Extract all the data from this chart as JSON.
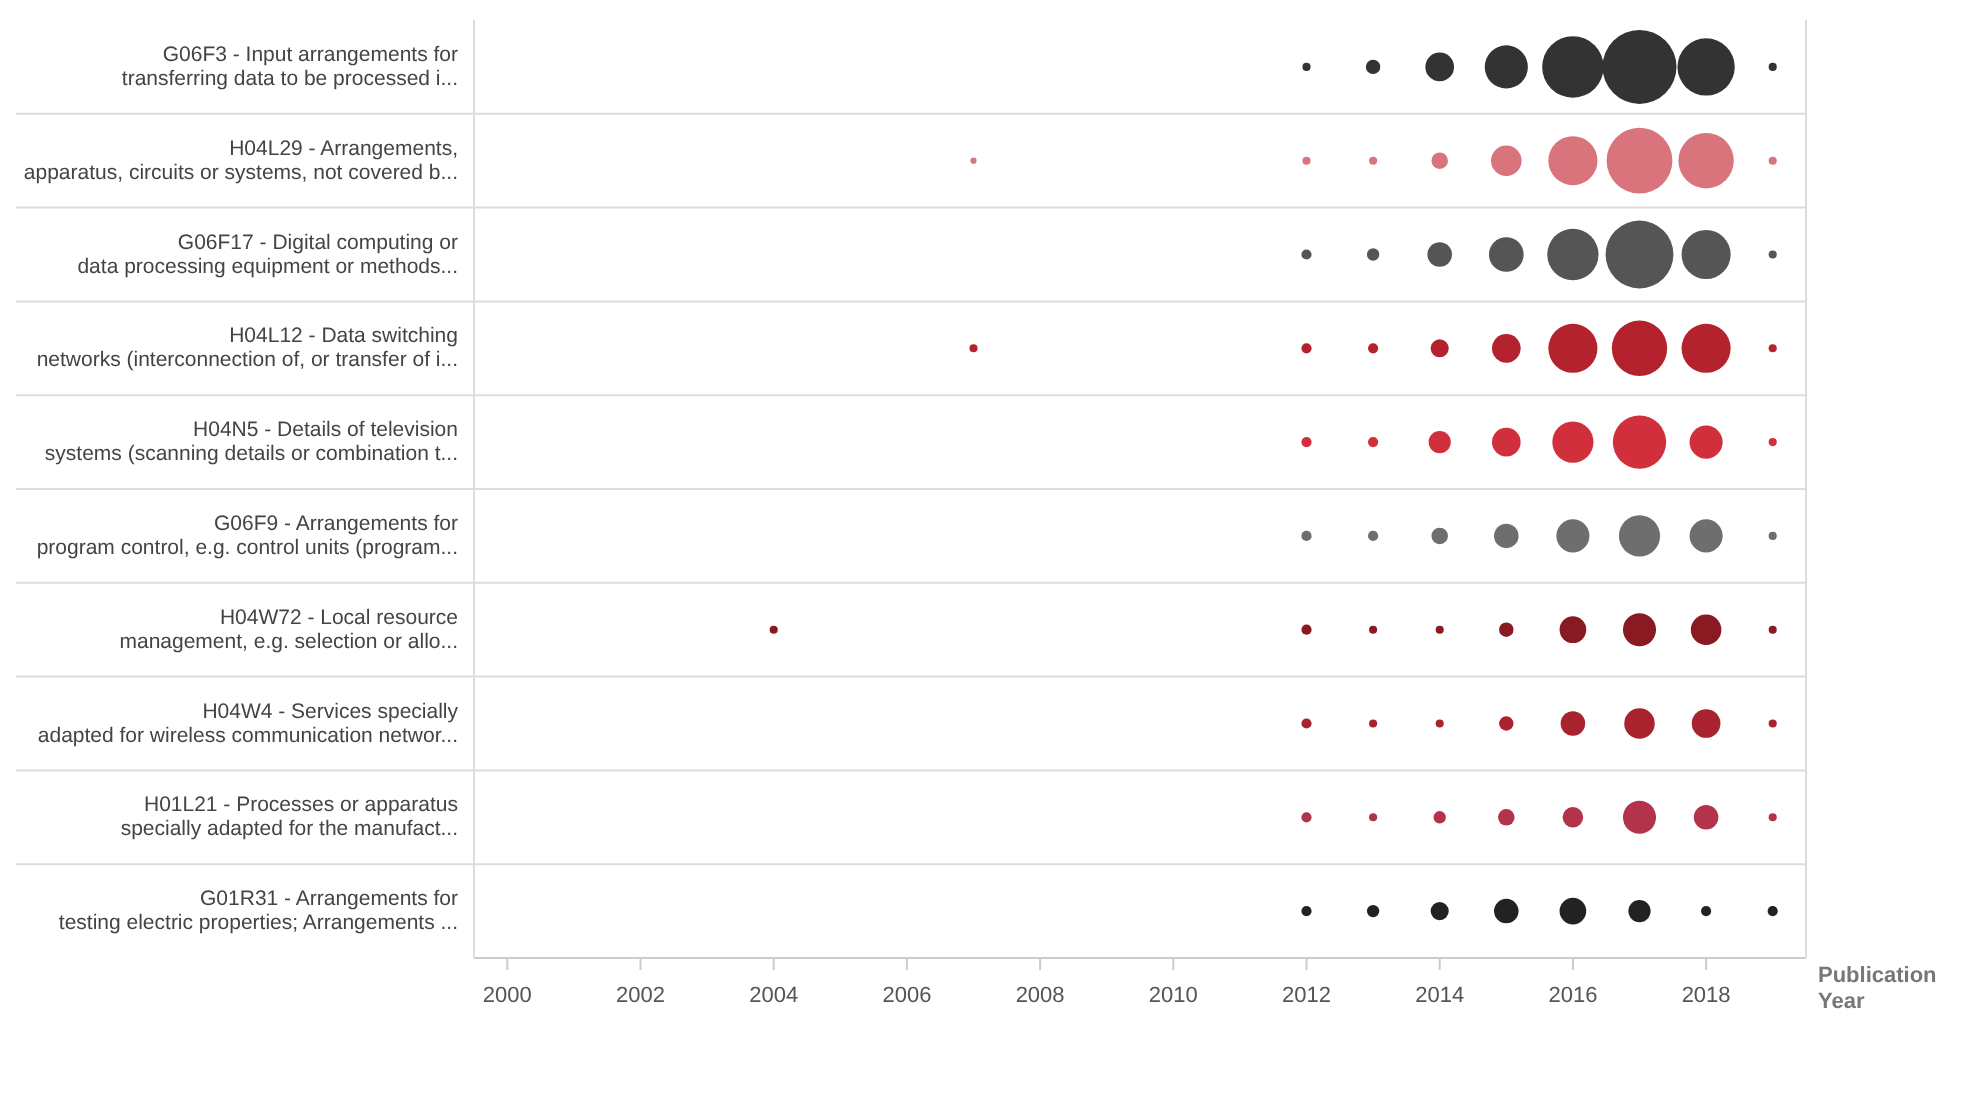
{
  "chart_data": {
    "type": "bubble",
    "orientation": "horizontal",
    "xlabel": "Publication Year",
    "xlim": [
      1999.5,
      2019.5
    ],
    "xticks": [
      2000,
      2002,
      2004,
      2006,
      2008,
      2010,
      2012,
      2014,
      2016,
      2018
    ],
    "categories": [
      "G06F3 - Input arrangements for transferring data to be processed i...",
      "H04L29 - Arrangements, apparatus, circuits or systems, not covered b...",
      "G06F17 - Digital computing or data processing equipment or methods...",
      "H04L12 - Data switching networks (interconnection of, or transfer of i...",
      "H04N5 - Details of television systems (scanning details or combination t...",
      "G06F9 - Arrangements for program control, e.g. control units (program...",
      "H04W72 - Local resource management, e.g. selection or allo...",
      "H04W4 - Services specially adapted for wireless communication networ...",
      "H01L21 - Processes or apparatus specially adapted for the manufact...",
      "G01R31 - Arrangements for testing electric properties; Arrangements ..."
    ],
    "series": [
      {
        "values": [
          null,
          null,
          null,
          null,
          null,
          null,
          2004,
          null,
          null,
          null
        ],
        "sizes": [
          null,
          null,
          null,
          null,
          null,
          null,
          0.012,
          null,
          null,
          null
        ],
        "colors": [
          null,
          null,
          null,
          null,
          null,
          null,
          "#8a1a22",
          null,
          null,
          null
        ]
      },
      {
        "values": [
          null,
          2007,
          null,
          2007,
          null,
          null,
          null,
          null,
          null,
          null
        ],
        "sizes": [
          null,
          0.007,
          null,
          0.012,
          null,
          null,
          null,
          null,
          null,
          null
        ],
        "colors": [
          null,
          "#d9737c",
          null,
          "#b3222d",
          null,
          null,
          null,
          null,
          null,
          null
        ]
      },
      {
        "values": [
          2012,
          2012,
          2012,
          2012,
          2012,
          2012,
          2012,
          2012,
          2012,
          2012
        ],
        "sizes": [
          0.012,
          0.012,
          0.019,
          0.019,
          0.019,
          0.019,
          0.019,
          0.019,
          0.019,
          0.019
        ],
        "colors": [
          "#333333",
          "#d9737c",
          "#555555",
          "#b3222d",
          "#d22f3d",
          "#6e6e6e",
          "#8a1a22",
          "#a8232e",
          "#b3344a",
          "#222222"
        ]
      },
      {
        "values": [
          2013,
          2013,
          2013,
          2013,
          2013,
          2013,
          2013,
          2013,
          2013,
          2013
        ],
        "sizes": [
          0.038,
          0.012,
          0.028,
          0.019,
          0.019,
          0.019,
          0.012,
          0.012,
          0.012,
          0.028
        ],
        "colors": [
          "#333333",
          "#d9737c",
          "#555555",
          "#b3222d",
          "#d22f3d",
          "#6e6e6e",
          "#8a1a22",
          "#a8232e",
          "#b3344a",
          "#222222"
        ]
      },
      {
        "values": [
          2014,
          2014,
          2014,
          2014,
          2014,
          2014,
          2014,
          2014,
          2014,
          2014
        ],
        "sizes": [
          0.15,
          0.05,
          0.11,
          0.06,
          0.09,
          0.05,
          0.012,
          0.012,
          0.028,
          0.06
        ],
        "colors": [
          "#333333",
          "#d9737c",
          "#555555",
          "#b3222d",
          "#d22f3d",
          "#6e6e6e",
          "#8a1a22",
          "#a8232e",
          "#b3344a",
          "#222222"
        ]
      },
      {
        "values": [
          2015,
          2015,
          2015,
          2015,
          2015,
          2015,
          2015,
          2015,
          2015,
          2015
        ],
        "sizes": [
          0.34,
          0.17,
          0.22,
          0.15,
          0.15,
          0.11,
          0.038,
          0.038,
          0.05,
          0.11
        ],
        "colors": [
          "#333333",
          "#d9737c",
          "#555555",
          "#b3222d",
          "#d22f3d",
          "#6e6e6e",
          "#8a1a22",
          "#a8232e",
          "#b3344a",
          "#222222"
        ]
      },
      {
        "values": [
          2016,
          2016,
          2016,
          2016,
          2016,
          2016,
          2016,
          2016,
          2016,
          2016
        ],
        "sizes": [
          0.69,
          0.44,
          0.48,
          0.44,
          0.31,
          0.2,
          0.13,
          0.11,
          0.077,
          0.13
        ],
        "colors": [
          "#333333",
          "#d9737c",
          "#555555",
          "#b3222d",
          "#d22f3d",
          "#6e6e6e",
          "#8a1a22",
          "#a8232e",
          "#b3344a",
          "#222222"
        ]
      },
      {
        "values": [
          2017,
          2017,
          2017,
          2017,
          2017,
          2017,
          2017,
          2017,
          2017,
          2017
        ],
        "sizes": [
          1,
          0.79,
          0.84,
          0.56,
          0.52,
          0.31,
          0.2,
          0.17,
          0.2,
          0.09
        ],
        "colors": [
          "#333333",
          "#d9737c",
          "#555555",
          "#b3222d",
          "#d22f3d",
          "#6e6e6e",
          "#8a1a22",
          "#a8232e",
          "#b3344a",
          "#222222"
        ]
      },
      {
        "values": [
          2018,
          2018,
          2018,
          2018,
          2018,
          2018,
          2018,
          2018,
          2018,
          2018
        ],
        "sizes": [
          0.6,
          0.56,
          0.44,
          0.44,
          0.2,
          0.2,
          0.17,
          0.15,
          0.11,
          0.019
        ],
        "colors": [
          "#333333",
          "#d9737c",
          "#555555",
          "#b3222d",
          "#d22f3d",
          "#6e6e6e",
          "#8a1a22",
          "#a8232e",
          "#b3344a",
          "#222222"
        ]
      },
      {
        "values": [
          2019,
          2019,
          2019,
          2019,
          2019,
          2019,
          2019,
          2019,
          2019,
          2019
        ],
        "sizes": [
          0.012,
          0.012,
          0.012,
          0.012,
          0.012,
          0.012,
          0.012,
          0.012,
          0.012,
          0.019
        ],
        "colors": [
          "#333333",
          "#d9737c",
          "#555555",
          "#b3222d",
          "#d22f3d",
          "#6e6e6e",
          "#8a1a22",
          "#a8232e",
          "#b3344a",
          "#222222"
        ]
      }
    ]
  }
}
